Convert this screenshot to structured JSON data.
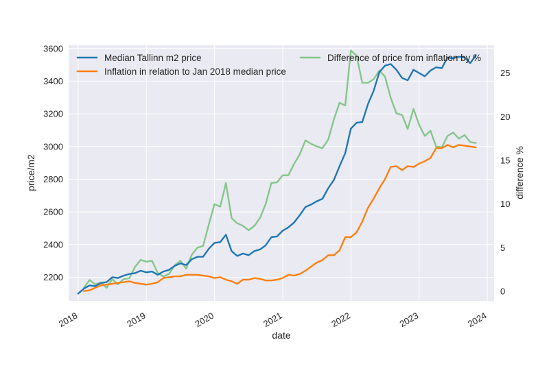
{
  "chart_data": {
    "type": "line",
    "xlabel": "date",
    "ylabel_left": "price/m2",
    "ylabel_right": "difference %",
    "x_ticks": [
      "2018",
      "2019",
      "2020",
      "2021",
      "2022",
      "2023",
      "2024"
    ],
    "y_left_ticks": [
      2200,
      2400,
      2600,
      2800,
      3000,
      3200,
      3400,
      3600
    ],
    "y_right_ticks": [
      0,
      5,
      10,
      15,
      20,
      25
    ],
    "xlim": [
      2017.86,
      2024.1
    ],
    "ylim_left": [
      2055,
      3620
    ],
    "ylim_right": [
      -1.1,
      28.2
    ],
    "grid": true,
    "legend_placement": "top",
    "series": [
      {
        "name": "Median Tallinn m2 price",
        "axis": "left",
        "color": "#1f77b4",
        "x": [
          2018.0,
          2018.083,
          2018.167,
          2018.25,
          2018.333,
          2018.417,
          2018.5,
          2018.583,
          2018.667,
          2018.75,
          2018.833,
          2018.917,
          2019.0,
          2019.083,
          2019.167,
          2019.25,
          2019.333,
          2019.417,
          2019.5,
          2019.583,
          2019.667,
          2019.75,
          2019.833,
          2019.917,
          2020.0,
          2020.083,
          2020.167,
          2020.25,
          2020.333,
          2020.417,
          2020.5,
          2020.583,
          2020.667,
          2020.75,
          2020.833,
          2020.917,
          2021.0,
          2021.083,
          2021.167,
          2021.25,
          2021.333,
          2021.417,
          2021.5,
          2021.583,
          2021.667,
          2021.75,
          2021.833,
          2021.917,
          2022.0,
          2022.083,
          2022.167,
          2022.25,
          2022.333,
          2022.417,
          2022.5,
          2022.583,
          2022.667,
          2022.75,
          2022.833,
          2022.917,
          2023.0,
          2023.083,
          2023.167,
          2023.25,
          2023.333,
          2023.417,
          2023.5,
          2023.583,
          2023.667,
          2023.75,
          2023.833
        ],
        "values": [
          2100,
          2130,
          2150,
          2145,
          2165,
          2170,
          2200,
          2195,
          2210,
          2220,
          2225,
          2240,
          2230,
          2235,
          2215,
          2235,
          2245,
          2270,
          2285,
          2275,
          2310,
          2325,
          2325,
          2375,
          2410,
          2415,
          2460,
          2360,
          2330,
          2345,
          2335,
          2360,
          2370,
          2395,
          2445,
          2450,
          2485,
          2505,
          2535,
          2580,
          2630,
          2645,
          2665,
          2680,
          2745,
          2795,
          2880,
          2960,
          3110,
          3145,
          3150,
          3260,
          3340,
          3455,
          3495,
          3505,
          3470,
          3420,
          3405,
          3470,
          3450,
          3430,
          3465,
          3485,
          3480,
          3545,
          3540,
          3550,
          3545,
          3510,
          3560
        ]
      },
      {
        "name": "Inflation in relation to Jan 2018 median price",
        "axis": "left",
        "color": "#ff7f0e",
        "x": [
          2018.083,
          2018.167,
          2018.25,
          2018.333,
          2018.417,
          2018.5,
          2018.583,
          2018.667,
          2018.75,
          2018.833,
          2018.917,
          2019.0,
          2019.083,
          2019.167,
          2019.25,
          2019.333,
          2019.417,
          2019.5,
          2019.583,
          2019.667,
          2019.75,
          2019.833,
          2019.917,
          2020.0,
          2020.083,
          2020.167,
          2020.25,
          2020.333,
          2020.417,
          2020.5,
          2020.583,
          2020.667,
          2020.75,
          2020.833,
          2020.917,
          2021.0,
          2021.083,
          2021.167,
          2021.25,
          2021.333,
          2021.417,
          2021.5,
          2021.583,
          2021.667,
          2021.75,
          2021.833,
          2021.917,
          2022.0,
          2022.083,
          2022.167,
          2022.25,
          2022.333,
          2022.417,
          2022.5,
          2022.583,
          2022.667,
          2022.75,
          2022.833,
          2022.917,
          2023.0,
          2023.083,
          2023.167,
          2023.25,
          2023.333,
          2023.417,
          2023.5,
          2023.583,
          2023.667,
          2023.75,
          2023.833
        ],
        "values": [
          2115,
          2120,
          2135,
          2150,
          2155,
          2160,
          2165,
          2170,
          2175,
          2165,
          2160,
          2155,
          2160,
          2170,
          2195,
          2200,
          2205,
          2205,
          2215,
          2215,
          2215,
          2210,
          2205,
          2195,
          2200,
          2185,
          2175,
          2160,
          2185,
          2185,
          2195,
          2190,
          2180,
          2180,
          2185,
          2195,
          2215,
          2210,
          2220,
          2240,
          2265,
          2290,
          2305,
          2335,
          2335,
          2365,
          2445,
          2445,
          2475,
          2540,
          2625,
          2680,
          2745,
          2800,
          2875,
          2880,
          2855,
          2880,
          2875,
          2895,
          2910,
          2930,
          2990,
          2990,
          3010,
          2995,
          3010,
          3005,
          3000,
          2995
        ]
      },
      {
        "name": "Difference of price from inflation by %",
        "axis": "right",
        "color": "#86c58b",
        "x": [
          2018.083,
          2018.167,
          2018.25,
          2018.333,
          2018.417,
          2018.5,
          2018.583,
          2018.667,
          2018.75,
          2018.833,
          2018.917,
          2019.0,
          2019.083,
          2019.167,
          2019.25,
          2019.333,
          2019.417,
          2019.5,
          2019.583,
          2019.667,
          2019.75,
          2019.833,
          2019.917,
          2020.0,
          2020.083,
          2020.167,
          2020.25,
          2020.333,
          2020.417,
          2020.5,
          2020.583,
          2020.667,
          2020.75,
          2020.833,
          2020.917,
          2021.0,
          2021.083,
          2021.167,
          2021.25,
          2021.333,
          2021.417,
          2021.5,
          2021.583,
          2021.667,
          2021.75,
          2021.833,
          2021.917,
          2022.0,
          2022.083,
          2022.167,
          2022.25,
          2022.333,
          2022.417,
          2022.5,
          2022.583,
          2022.667,
          2022.75,
          2022.833,
          2022.917,
          2023.0,
          2023.083,
          2023.167,
          2023.25,
          2023.333,
          2023.417,
          2023.5,
          2023.583,
          2023.667,
          2023.75,
          2023.833
        ],
        "values": [
          0.4,
          1.3,
          0.8,
          1.0,
          0.4,
          1.4,
          0.8,
          1.4,
          1.5,
          2.8,
          3.6,
          3.4,
          3.5,
          2.1,
          1.7,
          2.0,
          3.0,
          3.5,
          2.6,
          4.2,
          5.0,
          5.2,
          7.7,
          10.0,
          9.7,
          12.4,
          8.4,
          7.8,
          7.5,
          7.0,
          7.5,
          8.4,
          10.0,
          12.4,
          12.5,
          13.3,
          13.3,
          14.6,
          15.7,
          17.3,
          16.9,
          16.6,
          16.4,
          17.4,
          19.7,
          21.6,
          21.3,
          27.6,
          27.0,
          23.9,
          23.9,
          24.3,
          25.3,
          24.6,
          22.2,
          20.4,
          20.2,
          18.6,
          20.9,
          19.1,
          17.8,
          18.4,
          16.6,
          16.5,
          17.8,
          18.2,
          17.5,
          17.9,
          17.1,
          17.0
        ]
      }
    ]
  }
}
